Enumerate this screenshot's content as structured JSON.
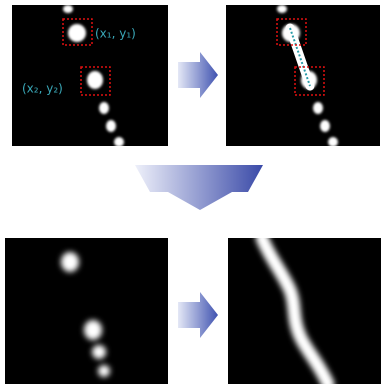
{
  "labels": {
    "point1": "(x₁, y₁)",
    "point2": "(x₂, y₂)"
  }
}
